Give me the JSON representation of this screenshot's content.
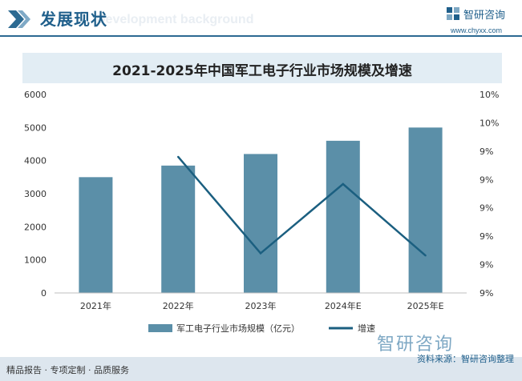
{
  "header": {
    "title": "发展现状",
    "subtitle": "Development background",
    "logo_name": "智研咨询",
    "logo_url": "www.chyxx.com"
  },
  "chart_data": {
    "type": "bar",
    "title": "2021-2025年中国军工电子行业市场规模及增速",
    "categories": [
      "2021年",
      "2022年",
      "2023年",
      "2024年E",
      "2025年E"
    ],
    "series": [
      {
        "name": "军工电子行业市场规模（亿元）",
        "type": "bar",
        "axis": "left",
        "values": [
          3500,
          3850,
          4200,
          4600,
          5000
        ],
        "color": "#5b8fa8"
      },
      {
        "name": "增速",
        "type": "line",
        "axis": "right",
        "values": [
          null,
          9.95,
          9.1,
          9.71,
          9.08
        ],
        "color": "#1b5f80"
      }
    ],
    "yticks_left": [
      "0",
      "1000",
      "2000",
      "3000",
      "4000",
      "5000",
      "6000"
    ],
    "ylim_left": [
      0,
      6000
    ],
    "yticks_right": [
      "9%",
      "9%",
      "9%",
      "9%",
      "9%",
      "9%",
      "10%",
      "10%"
    ],
    "ylim_right": [
      8.75,
      10.5
    ],
    "legend_position": "bottom"
  },
  "footer": {
    "left": "精品报告 · 专项定制 · 品质服务",
    "source": "资料来源：智研咨询整理",
    "logo": "智研咨询"
  },
  "colors": {
    "accent": "#1f5f8b",
    "bar": "#5b8fa8",
    "line": "#1b5f80",
    "band": "#e2edf4"
  }
}
